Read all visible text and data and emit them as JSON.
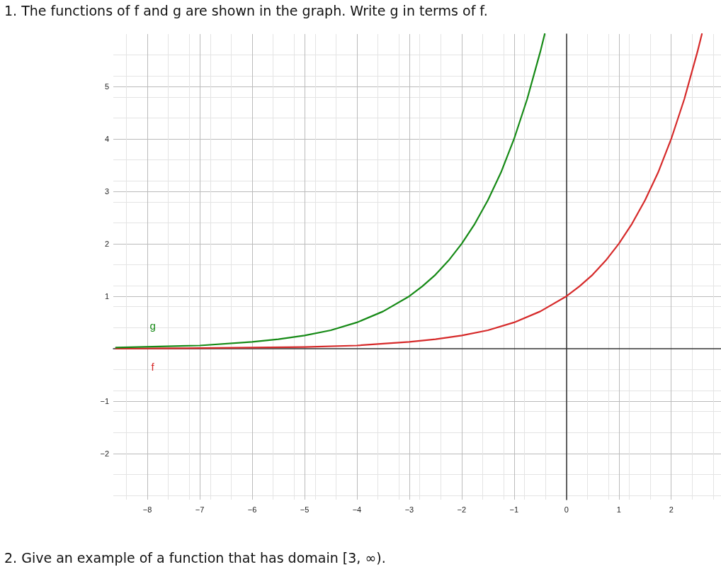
{
  "chart_data": {
    "type": "line",
    "title": "1. The functions of f and g are shown in the graph. Write g in terms of f.",
    "annotations": [
      "2. Give an example of a function that has domain [3, ∞)."
    ],
    "series": [
      {
        "name": "f",
        "color": "#d62a2a",
        "x": [
          -8.6,
          -7,
          -6,
          -5,
          -4,
          -3,
          -2.5,
          -2,
          -1.5,
          -1,
          -0.5,
          0,
          0.25,
          0.5,
          0.75,
          1,
          1.25,
          1.5,
          1.75,
          2,
          2.25,
          2.5,
          2.585
        ],
        "values": [
          0,
          0.01,
          0.02,
          0.03,
          0.06,
          0.13,
          0.18,
          0.25,
          0.35,
          0.5,
          0.71,
          1,
          1.19,
          1.41,
          1.68,
          2,
          2.38,
          2.83,
          3.36,
          4,
          4.76,
          5.66,
          6
        ]
      },
      {
        "name": "g",
        "color": "#168a16",
        "x": [
          -8.6,
          -7,
          -6,
          -5.5,
          -5,
          -4.5,
          -4,
          -3.5,
          -3,
          -2.75,
          -2.5,
          -2.25,
          -2,
          -1.75,
          -1.5,
          -1.25,
          -1,
          -0.75,
          -0.5,
          -0.415
        ],
        "values": [
          0.02,
          0.06,
          0.13,
          0.18,
          0.25,
          0.35,
          0.5,
          0.71,
          1,
          1.19,
          1.41,
          1.68,
          2,
          2.38,
          2.83,
          3.36,
          4,
          4.76,
          5.66,
          6
        ]
      }
    ],
    "xlim": [
      -8.65,
      2.95
    ],
    "ylim": [
      -2.88,
      6
    ],
    "xticks": [
      -8,
      -7,
      -6,
      -5,
      -4,
      -3,
      -2,
      -1,
      0,
      1,
      2
    ],
    "yticks": [
      -2,
      -1,
      1,
      2,
      3,
      4,
      5
    ],
    "grid": true,
    "legend": false,
    "marker": "none",
    "line_style": "solid"
  }
}
